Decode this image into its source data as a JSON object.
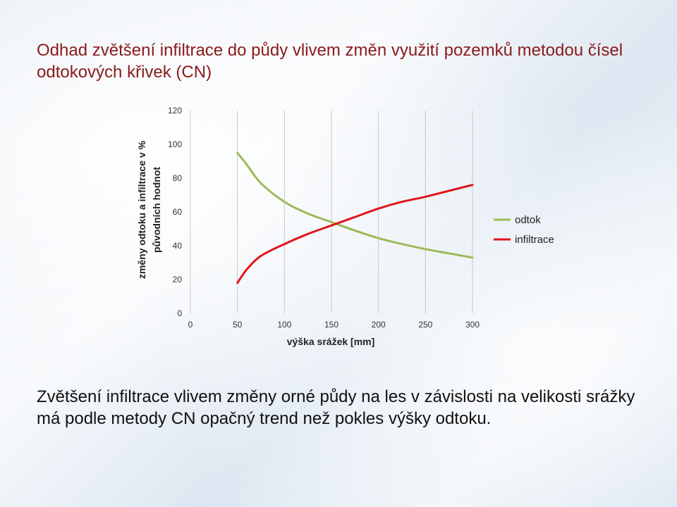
{
  "title": "Odhad zvětšení infiltrace do půdy vlivem změn využití pozemků metodou čísel odtokových křivek (CN)",
  "caption": "Zvětšení infiltrace vlivem změny orné půdy na les v závislosti na velikosti srážky má podle metody CN opačný trend než pokles výšky odtoku.",
  "chart_data": {
    "type": "line",
    "xlabel": "výška srážek [mm]",
    "ylabel_line1": "změny odtoku  a infiltrace v %",
    "ylabel_line2": "původních  hodnot",
    "xlim": [
      0,
      300
    ],
    "ylim": [
      0,
      120
    ],
    "xticks": [
      0,
      50,
      100,
      150,
      200,
      250,
      300
    ],
    "yticks": [
      0,
      20,
      40,
      60,
      80,
      100,
      120
    ],
    "grid": "vertical",
    "legend_position": "right",
    "series": [
      {
        "name": "odtok",
        "color": "#9bbb59",
        "x": [
          50,
          60,
          75,
          100,
          125,
          150,
          175,
          200,
          225,
          250,
          275,
          300
        ],
        "y": [
          95,
          88,
          77,
          66,
          59,
          54,
          49,
          44.5,
          41,
          38,
          35.5,
          33
        ]
      },
      {
        "name": "infiltrace",
        "color": "#e0161c",
        "x": [
          50,
          60,
          75,
          100,
          125,
          150,
          175,
          200,
          225,
          250,
          275,
          300
        ],
        "y": [
          18,
          26,
          34,
          41,
          47,
          52,
          57,
          62,
          66,
          69,
          72.5,
          76
        ]
      }
    ]
  }
}
